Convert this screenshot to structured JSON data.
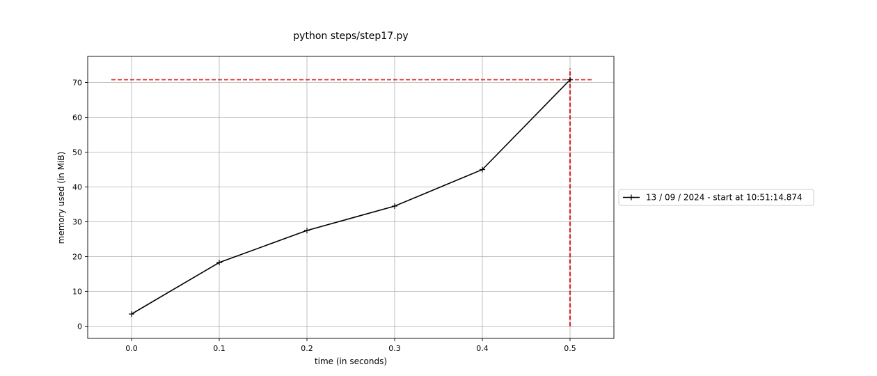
{
  "chart_data": {
    "type": "line",
    "title": "python steps/step17.py",
    "xlabel": "time (in seconds)",
    "ylabel": "memory used (in MiB)",
    "xlim": [
      -0.05,
      0.55
    ],
    "ylim": [
      -3.5,
      77.5
    ],
    "xticks": [
      0.0,
      0.1,
      0.2,
      0.3,
      0.4,
      0.5
    ],
    "xtick_labels": [
      "0.0",
      "0.1",
      "0.2",
      "0.3",
      "0.4",
      "0.5"
    ],
    "yticks": [
      0,
      10,
      20,
      30,
      40,
      50,
      60,
      70
    ],
    "ytick_labels": [
      "0",
      "10",
      "20",
      "30",
      "40",
      "50",
      "60",
      "70"
    ],
    "grid": true,
    "legend_position": "outside-right",
    "series": [
      {
        "name": "13 / 09 / 2024 - start at 10:51:14.874",
        "color": "#000000",
        "marker": "plus",
        "x": [
          0.0,
          0.1,
          0.2,
          0.3,
          0.4,
          0.5
        ],
        "y": [
          3.5,
          18.3,
          27.5,
          34.5,
          45.0,
          70.8
        ]
      }
    ],
    "peak_markers": {
      "color": "#d62728",
      "style": "dashed",
      "horizontal": {
        "y": 70.8,
        "x_from": -0.023,
        "x_to": 0.527
      },
      "vertical": {
        "x": 0.5,
        "y_from": 0,
        "y_to": 74.0
      }
    }
  }
}
